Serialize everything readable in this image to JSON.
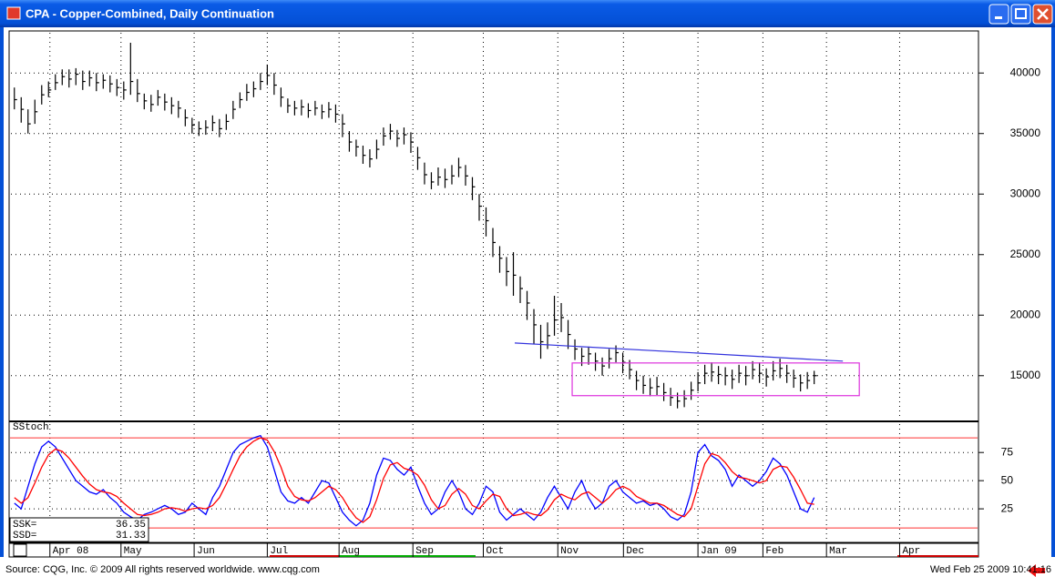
{
  "window": {
    "title": "CPA - Copper-Combined, Daily Continuation"
  },
  "chart_data": [
    {
      "type": "ohlc",
      "xlim": [
        -0.5,
        140.5
      ],
      "xticks": [
        {
          "value": 5.2,
          "label": "Apr 08"
        },
        {
          "value": 15.6,
          "label": "May"
        },
        {
          "value": 26.3,
          "label": "Jun"
        },
        {
          "value": 37,
          "label": "Jul"
        },
        {
          "value": 47.5,
          "label": "Aug"
        },
        {
          "value": 58.3,
          "label": "Sep"
        },
        {
          "value": 68.6,
          "label": "Oct"
        },
        {
          "value": 79.5,
          "label": "Nov"
        },
        {
          "value": 89.1,
          "label": "Dec"
        },
        {
          "value": 100,
          "label": "Jan 09"
        },
        {
          "value": 109.5,
          "label": "Feb"
        },
        {
          "value": 118.8,
          "label": "Mar"
        },
        {
          "value": 129.5,
          "label": "Apr"
        }
      ],
      "ylim": [
        11300,
        43400
      ],
      "yticks": [
        15000,
        20000,
        25000,
        30000,
        35000,
        40000
      ],
      "grid": true,
      "color": "#000000",
      "high": [
        38800,
        38000,
        37000,
        37800,
        39000,
        39300,
        39900,
        40300,
        40300,
        40400,
        40200,
        40200,
        40000,
        39900,
        39800,
        39500,
        39300,
        42500,
        39500,
        38300,
        38200,
        38600,
        38300,
        38000,
        37700,
        37000,
        36300,
        36000,
        36100,
        36500,
        36200,
        36600,
        37700,
        38400,
        39100,
        39300,
        40000,
        40700,
        40000,
        38800,
        37900,
        37700,
        37800,
        37500,
        37700,
        37400,
        37600,
        37400,
        36600,
        35200,
        34500,
        34000,
        33700,
        34500,
        35500,
        35800,
        35300,
        35500,
        35100,
        33900,
        32600,
        31800,
        32200,
        32100,
        32400,
        33000,
        32400,
        31400,
        30000,
        28900,
        27200,
        25700,
        24800,
        25200,
        23200,
        22000,
        20500,
        19200,
        19400,
        21600,
        21000,
        19600,
        18000,
        17300,
        17400,
        16900,
        16500,
        17200,
        17500,
        16900,
        16300,
        15400,
        15000,
        14800,
        14900,
        14400,
        14000,
        13600,
        13800,
        14500,
        15300,
        15900,
        16100,
        15800,
        15700,
        15500,
        15900,
        15800,
        16200,
        16100,
        15600,
        16200,
        16400,
        15900,
        15500,
        15100,
        15300,
        15400
      ],
      "low": [
        37000,
        35900,
        35000,
        35800,
        37400,
        38000,
        38600,
        39000,
        38800,
        39000,
        38600,
        38900,
        38500,
        38700,
        38400,
        38100,
        37800,
        38200,
        37600,
        37000,
        36800,
        37300,
        36900,
        36600,
        36300,
        35600,
        35000,
        34800,
        34900,
        35200,
        34700,
        35300,
        36200,
        37100,
        37700,
        38000,
        38600,
        39000,
        38200,
        37200,
        36700,
        36500,
        36500,
        36300,
        36500,
        36200,
        36300,
        35900,
        34700,
        33500,
        33100,
        32500,
        32200,
        32900,
        34000,
        34500,
        33900,
        34100,
        33400,
        32000,
        30800,
        30400,
        30700,
        30500,
        30800,
        31400,
        30700,
        29500,
        27800,
        26500,
        24800,
        23500,
        22400,
        21600,
        21000,
        19600,
        17600,
        16400,
        17200,
        18300,
        18600,
        17200,
        16300,
        15800,
        15900,
        15400,
        15000,
        15600,
        16100,
        15200,
        14700,
        13800,
        13500,
        13300,
        13400,
        12900,
        12500,
        12300,
        12400,
        13000,
        13700,
        14300,
        14500,
        14300,
        14200,
        13900,
        14400,
        14200,
        14700,
        14400,
        14100,
        14600,
        14800,
        14400,
        14000,
        13700,
        13900,
        14300
      ],
      "close": [
        37800,
        37000,
        35800,
        36800,
        38200,
        38600,
        39200,
        39700,
        39500,
        39900,
        39300,
        39600,
        39200,
        39400,
        39100,
        38800,
        38600,
        39300,
        38300,
        37700,
        37400,
        38000,
        37600,
        37300,
        37100,
        36300,
        35700,
        35400,
        35500,
        35900,
        35400,
        36000,
        37000,
        37800,
        38400,
        38700,
        39300,
        39800,
        39000,
        38000,
        37300,
        37100,
        37200,
        36900,
        37100,
        36800,
        37000,
        36600,
        35800,
        34300,
        33900,
        33200,
        32900,
        33700,
        34800,
        35200,
        34600,
        34900,
        34300,
        33000,
        31600,
        31000,
        31400,
        31200,
        31500,
        32200,
        31500,
        30600,
        29000,
        27800,
        26000,
        24700,
        23600,
        23300,
        22200,
        21000,
        19200,
        17800,
        18300,
        19600,
        19800,
        18400,
        17200,
        16600,
        16800,
        16200,
        15800,
        16400,
        16900,
        16100,
        15500,
        14600,
        14200,
        14000,
        14100,
        13600,
        13200,
        12900,
        13100,
        13800,
        14400,
        15200,
        15300,
        15100,
        15000,
        14700,
        15200,
        15000,
        15500,
        15200,
        14900,
        15400,
        15600,
        15200,
        14800,
        14400,
        14600,
        15000
      ],
      "trendline": {
        "x": [
          73.2,
          121.2
        ],
        "y": [
          17700,
          16200
        ],
        "color": "#3333dd"
      },
      "range_box": {
        "x": [
          81.6,
          123.6
        ],
        "y": [
          13350,
          16050
        ],
        "color": "#dd33dd"
      }
    },
    {
      "type": "line",
      "title": "SStoch",
      "ylim": [
        -4,
        101
      ],
      "yticks": [
        25,
        50,
        75
      ],
      "grid": true,
      "levels": [
        88,
        8
      ],
      "level_color": "#ff3333",
      "series": [
        {
          "name": "SSK",
          "color": "#0000ff",
          "values": [
            30,
            25,
            45,
            65,
            80,
            85,
            80,
            70,
            60,
            50,
            45,
            40,
            38,
            42,
            35,
            30,
            22,
            18,
            15,
            20,
            22,
            25,
            28,
            25,
            20,
            22,
            30,
            25,
            20,
            35,
            45,
            60,
            75,
            82,
            85,
            88,
            90,
            80,
            60,
            40,
            32,
            30,
            35,
            30,
            40,
            50,
            48,
            35,
            22,
            15,
            10,
            15,
            30,
            55,
            70,
            68,
            60,
            55,
            62,
            45,
            30,
            20,
            25,
            40,
            50,
            40,
            25,
            20,
            30,
            45,
            40,
            22,
            15,
            20,
            25,
            20,
            15,
            22,
            35,
            45,
            35,
            25,
            40,
            50,
            35,
            25,
            30,
            45,
            50,
            40,
            35,
            30,
            32,
            28,
            30,
            25,
            18,
            15,
            20,
            40,
            75,
            82,
            72,
            68,
            60,
            45,
            55,
            50,
            45,
            50,
            58,
            70,
            65,
            55,
            40,
            25,
            22,
            35
          ]
        },
        {
          "name": "SSD",
          "color": "#ff0000",
          "values": [
            35,
            30,
            35,
            48,
            62,
            73,
            78,
            76,
            70,
            62,
            54,
            47,
            42,
            40,
            39,
            36,
            30,
            25,
            20,
            19,
            20,
            22,
            25,
            26,
            25,
            23,
            25,
            26,
            25,
            28,
            35,
            47,
            60,
            72,
            80,
            85,
            88,
            86,
            76,
            62,
            45,
            36,
            33,
            32,
            35,
            40,
            45,
            42,
            35,
            25,
            17,
            13,
            18,
            33,
            52,
            64,
            66,
            61,
            59,
            55,
            46,
            33,
            25,
            28,
            38,
            43,
            38,
            28,
            25,
            32,
            38,
            36,
            25,
            19,
            20,
            22,
            20,
            19,
            24,
            33,
            38,
            35,
            33,
            38,
            40,
            35,
            30,
            35,
            42,
            45,
            42,
            36,
            33,
            30,
            30,
            28,
            24,
            20,
            18,
            25,
            45,
            65,
            74,
            72,
            66,
            58,
            53,
            52,
            50,
            48,
            50,
            60,
            63,
            62,
            53,
            42,
            30,
            29
          ]
        }
      ],
      "readout": [
        {
          "label": "SSK=",
          "value": 36.35
        },
        {
          "label": "SSD=",
          "value": 31.33
        }
      ]
    }
  ],
  "footer": {
    "source": "Source: CQG, Inc. © 2009 All rights reserved worldwide. www.cqg.com",
    "timestamp": "Wed Feb 25 2009 10:41:16"
  }
}
